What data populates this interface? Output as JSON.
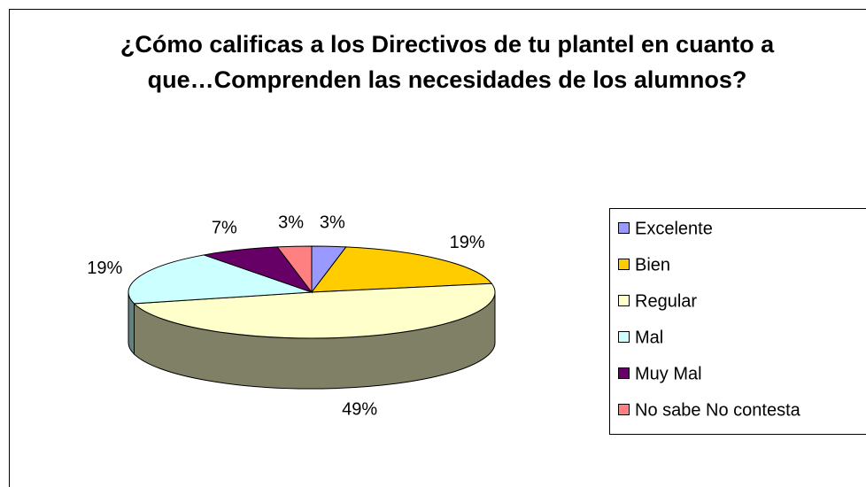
{
  "chart_data": {
    "type": "pie3d",
    "title": "¿Cómo calificas a los Directivos de tu plantel en cuanto a que…Comprenden  las necesidades de los alumnos?",
    "categories": [
      "Excelente",
      "Bien",
      "Regular",
      "Mal",
      "Muy Mal",
      "No sabe No contesta"
    ],
    "values": [
      3,
      19,
      49,
      19,
      7,
      3
    ],
    "value_labels": [
      "3%",
      "19%",
      "49%",
      "19%",
      "7%",
      "3%"
    ],
    "colors": [
      "#9999ff",
      "#ffcc00",
      "#ffffcc",
      "#ccffff",
      "#660066",
      "#ff8080"
    ],
    "legend": "right"
  }
}
